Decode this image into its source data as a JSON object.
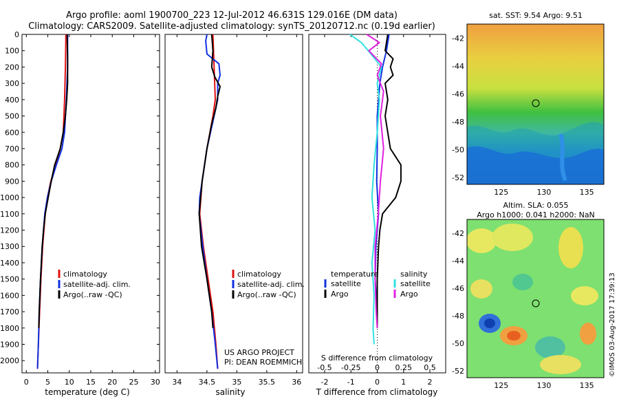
{
  "titles": {
    "line1": "Argo profile: aoml 1900700_223 12-Jul-2012 46.631S 129.016E (DM data)",
    "line2": "Climatology: CARS2009. Satellite-adjusted climatology: synTS_20120712.nc (0.19d earlier)"
  },
  "colors": {
    "climatology": "#e01010",
    "satellite": "#1030e0",
    "argo": "#000000",
    "sal_satellite": "#30e0e0",
    "sal_argo": "#e020e0"
  },
  "chart_data": [
    {
      "type": "line",
      "xlabel": "temperature (deg C)",
      "xlim": [
        -1,
        31
      ],
      "ylim": [
        0,
        2075
      ],
      "xticks": [
        "0",
        "5",
        "10",
        "15",
        "20",
        "25",
        "30"
      ],
      "yticks": [
        "0",
        "100",
        "200",
        "300",
        "400",
        "500",
        "600",
        "700",
        "800",
        "900",
        "1000",
        "1100",
        "1200",
        "1300",
        "1400",
        "1500",
        "1600",
        "1700",
        "1800",
        "1900",
        "2000"
      ],
      "legend": [
        "climatology",
        "satellite-adj. clim.",
        "Argo(..raw -QC)"
      ],
      "series": [
        {
          "name": "climatology",
          "depth": [
            0,
            200,
            400,
            600,
            700,
            800,
            900,
            1000,
            1100,
            1200,
            1300,
            1500,
            1700,
            1900,
            2050
          ],
          "values": [
            9.2,
            9.1,
            8.9,
            8.6,
            7.9,
            6.8,
            5.7,
            4.9,
            4.4,
            4.1,
            3.8,
            3.4,
            3.1,
            2.8,
            2.6
          ]
        },
        {
          "name": "satellite-adj. clim.",
          "depth": [
            0,
            200,
            400,
            600,
            700,
            800,
            900,
            1000,
            1100,
            1200,
            1300,
            1500,
            1700,
            1900,
            2050
          ],
          "values": [
            9.6,
            9.6,
            9.3,
            8.9,
            8.3,
            7.0,
            5.8,
            4.9,
            4.3,
            4.0,
            3.7,
            3.3,
            3.0,
            2.8,
            2.6
          ]
        },
        {
          "name": "Argo(..raw -QC)",
          "depth": [
            0,
            150,
            300,
            400,
            500,
            600,
            700,
            800,
            900,
            1000,
            1100,
            1200,
            1300,
            1500,
            1700,
            1800
          ],
          "values": [
            9.5,
            9.6,
            9.6,
            9.4,
            9.1,
            8.6,
            7.9,
            6.6,
            5.8,
            5.1,
            4.4,
            4.0,
            3.7,
            3.3,
            3.0,
            2.9
          ]
        }
      ]
    },
    {
      "type": "line",
      "xlabel": "salinity",
      "xlim": [
        33.8,
        36.1
      ],
      "ylim": [
        0,
        2075
      ],
      "xticks": [
        "34",
        "34.5",
        "35",
        "35.5",
        "36"
      ],
      "legend": [
        "climatology",
        "satellite-adj. clim.",
        "Argo(..raw -QC)"
      ],
      "footer": [
        "US ARGO PROJECT",
        "PI: DEAN ROEMMICH"
      ],
      "series": [
        {
          "name": "climatology",
          "depth": [
            0,
            200,
            400,
            500,
            700,
            900,
            1100,
            1300,
            1500,
            1700,
            1900,
            2050
          ],
          "values": [
            34.6,
            34.62,
            34.64,
            34.6,
            34.5,
            34.42,
            34.38,
            34.44,
            34.52,
            34.6,
            34.65,
            34.68
          ]
        },
        {
          "name": "satellite-adj. clim.",
          "depth": [
            0,
            40,
            120,
            180,
            250,
            300,
            400,
            500,
            600,
            700,
            800,
            900,
            1000,
            1100,
            1300,
            1500,
            1700,
            1900,
            2050
          ],
          "values": [
            34.5,
            34.48,
            34.5,
            34.7,
            34.72,
            34.68,
            34.68,
            34.62,
            34.56,
            34.5,
            34.46,
            34.42,
            34.38,
            34.37,
            34.43,
            34.5,
            34.58,
            34.64,
            34.68
          ]
        },
        {
          "name": "Argo(..raw -QC)",
          "depth": [
            0,
            100,
            200,
            260,
            320,
            380,
            450,
            550,
            700,
            900,
            1100,
            1300,
            1500,
            1700,
            1800
          ],
          "values": [
            34.58,
            34.6,
            34.58,
            34.63,
            34.72,
            34.68,
            34.65,
            34.58,
            34.5,
            34.42,
            34.37,
            34.41,
            34.5,
            34.58,
            34.6
          ]
        }
      ]
    },
    {
      "type": "line",
      "xlabel": "T difference from climatology",
      "top_label": "S difference from climatology",
      "xlim": [
        -2.6,
        2.6
      ],
      "ylim": [
        0,
        2075
      ],
      "xticks": [
        "-2",
        "-1",
        "0",
        "1",
        "2"
      ],
      "top_ticks": [
        "-0.5",
        "-0.25",
        "0",
        "0.25",
        "0.5"
      ],
      "legend_groups": {
        "temperature": [
          "satellite",
          "Argo"
        ],
        "salinity": [
          "satellite",
          "Argo"
        ]
      },
      "series": [
        {
          "name": "temperature satellite",
          "depth": [
            0,
            100,
            200,
            300,
            500,
            700,
            900,
            1100,
            1300,
            1500,
            1700,
            1800
          ],
          "values": [
            0.45,
            0.35,
            0.2,
            0.1,
            0.0,
            0.0,
            -0.02,
            0.05,
            -0.05,
            -0.08,
            0.0,
            0.0
          ]
        },
        {
          "name": "temperature Argo",
          "depth": [
            0,
            100,
            150,
            200,
            250,
            300,
            400,
            500,
            700,
            800,
            900,
            1000,
            1100,
            1200,
            1300,
            1500,
            1700,
            1800
          ],
          "values": [
            0.4,
            0.3,
            0.6,
            0.5,
            0.6,
            0.3,
            0.4,
            0.3,
            0.5,
            0.9,
            0.9,
            0.7,
            0.2,
            0.1,
            0.05,
            0.0,
            0.0,
            0.0
          ]
        },
        {
          "name": "salinity satellite",
          "depth": [
            0,
            50,
            120,
            200,
            300,
            400,
            600,
            800,
            1000,
            1200,
            1400,
            1600,
            1800,
            1900
          ],
          "values": [
            -0.26,
            -0.15,
            -0.06,
            0.04,
            0.0,
            0.02,
            0.0,
            -0.03,
            -0.05,
            -0.02,
            -0.05,
            -0.03,
            -0.04,
            -0.03
          ]
        },
        {
          "name": "salinity Argo",
          "depth": [
            0,
            50,
            100,
            180,
            250,
            350,
            500,
            700,
            900,
            1100,
            1300,
            1500,
            1700,
            1800
          ],
          "values": [
            -0.1,
            0.02,
            -0.08,
            0.04,
            0.0,
            0.06,
            0.03,
            0.06,
            0.03,
            0.01,
            -0.02,
            -0.02,
            -0.01,
            0.0
          ]
        }
      ]
    }
  ],
  "maps": {
    "sst": {
      "title": "sat. SST: 9.54  Argo: 9.51",
      "yticks": [
        "-42",
        "-44",
        "-46",
        "-48",
        "-50",
        "-52"
      ],
      "xticks": [
        "125",
        "130",
        "135"
      ]
    },
    "sla": {
      "title1": "Altim. SLA: 0.055",
      "title2": "Argo h1000: 0.041  h2000: NaN",
      "yticks": [
        "-42",
        "-44",
        "-46",
        "-48",
        "-50",
        "-52"
      ],
      "xticks": [
        "125",
        "130",
        "135"
      ]
    }
  },
  "credit": "©IMOS 03-Aug-2017 17:39:13"
}
